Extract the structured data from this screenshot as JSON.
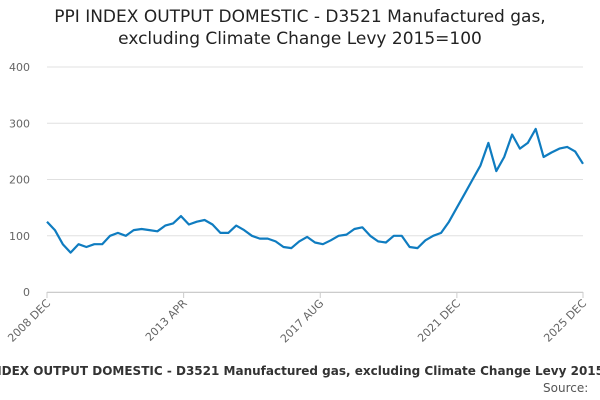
{
  "chart_data": {
    "type": "line",
    "title": "PPI INDEX OUTPUT DOMESTIC - D3521 Manufactured gas, excluding Climate Change Levy 2015=100",
    "source": "Source:",
    "x": [
      "2008 DEC",
      "2009 MAR",
      "2009 JUN",
      "2009 SEP",
      "2009 DEC",
      "2010 MAR",
      "2010 JUN",
      "2010 SEP",
      "2010 DEC",
      "2011 MAR",
      "2011 JUN",
      "2011 SEP",
      "2011 DEC",
      "2012 MAR",
      "2012 JUN",
      "2012 SEP",
      "2012 DEC",
      "2013 MAR",
      "2013 JUN",
      "2013 SEP",
      "2013 DEC",
      "2014 MAR",
      "2014 JUN",
      "2014 SEP",
      "2014 DEC",
      "2015 MAR",
      "2015 JUN",
      "2015 SEP",
      "2015 DEC",
      "2016 MAR",
      "2016 JUN",
      "2016 SEP",
      "2016 DEC",
      "2017 MAR",
      "2017 JUN",
      "2017 SEP",
      "2017 DEC",
      "2018 MAR",
      "2018 JUN",
      "2018 SEP",
      "2018 DEC",
      "2019 MAR",
      "2019 JUN",
      "2019 SEP",
      "2019 DEC",
      "2020 MAR",
      "2020 JUN",
      "2020 SEP",
      "2020 DEC",
      "2021 MAR",
      "2021 JUN",
      "2021 SEP",
      "2021 DEC",
      "2022 MAR",
      "2022 JUN",
      "2022 SEP",
      "2022 DEC",
      "2023 MAR",
      "2023 JUN",
      "2023 SEP",
      "2023 DEC",
      "2024 MAR",
      "2024 JUN",
      "2024 SEP",
      "2024 DEC",
      "2025 MAR",
      "2025 JUN",
      "2025 SEP",
      "2025 DEC"
    ],
    "series": [
      {
        "name": "PPI INDEX OUTPUT DOMESTIC - D3521 Manufactured gas, excluding Climate Change Levy 2015=100",
        "color": "#0f7cc0",
        "values": [
          125,
          110,
          85,
          70,
          85,
          80,
          85,
          85,
          100,
          105,
          100,
          110,
          112,
          110,
          108,
          118,
          122,
          135,
          120,
          125,
          128,
          120,
          105,
          105,
          118,
          110,
          100,
          95,
          95,
          90,
          80,
          78,
          90,
          98,
          88,
          85,
          92,
          100,
          102,
          112,
          115,
          100,
          90,
          88,
          100,
          100,
          80,
          78,
          92,
          100,
          105,
          125,
          150,
          175,
          200,
          225,
          265,
          215,
          240,
          280,
          255,
          265,
          290,
          240,
          248,
          255,
          258,
          250,
          228
        ]
      }
    ],
    "xlim": [
      "2008 DEC",
      "2025 DEC"
    ],
    "xticks": [
      "2008 DEC",
      "2013 APR",
      "2017 AUG",
      "2021 DEC",
      "2025 DEC"
    ],
    "ylim": [
      0,
      400
    ],
    "yticks": [
      0,
      100,
      200,
      300,
      400
    ],
    "grid": true
  }
}
